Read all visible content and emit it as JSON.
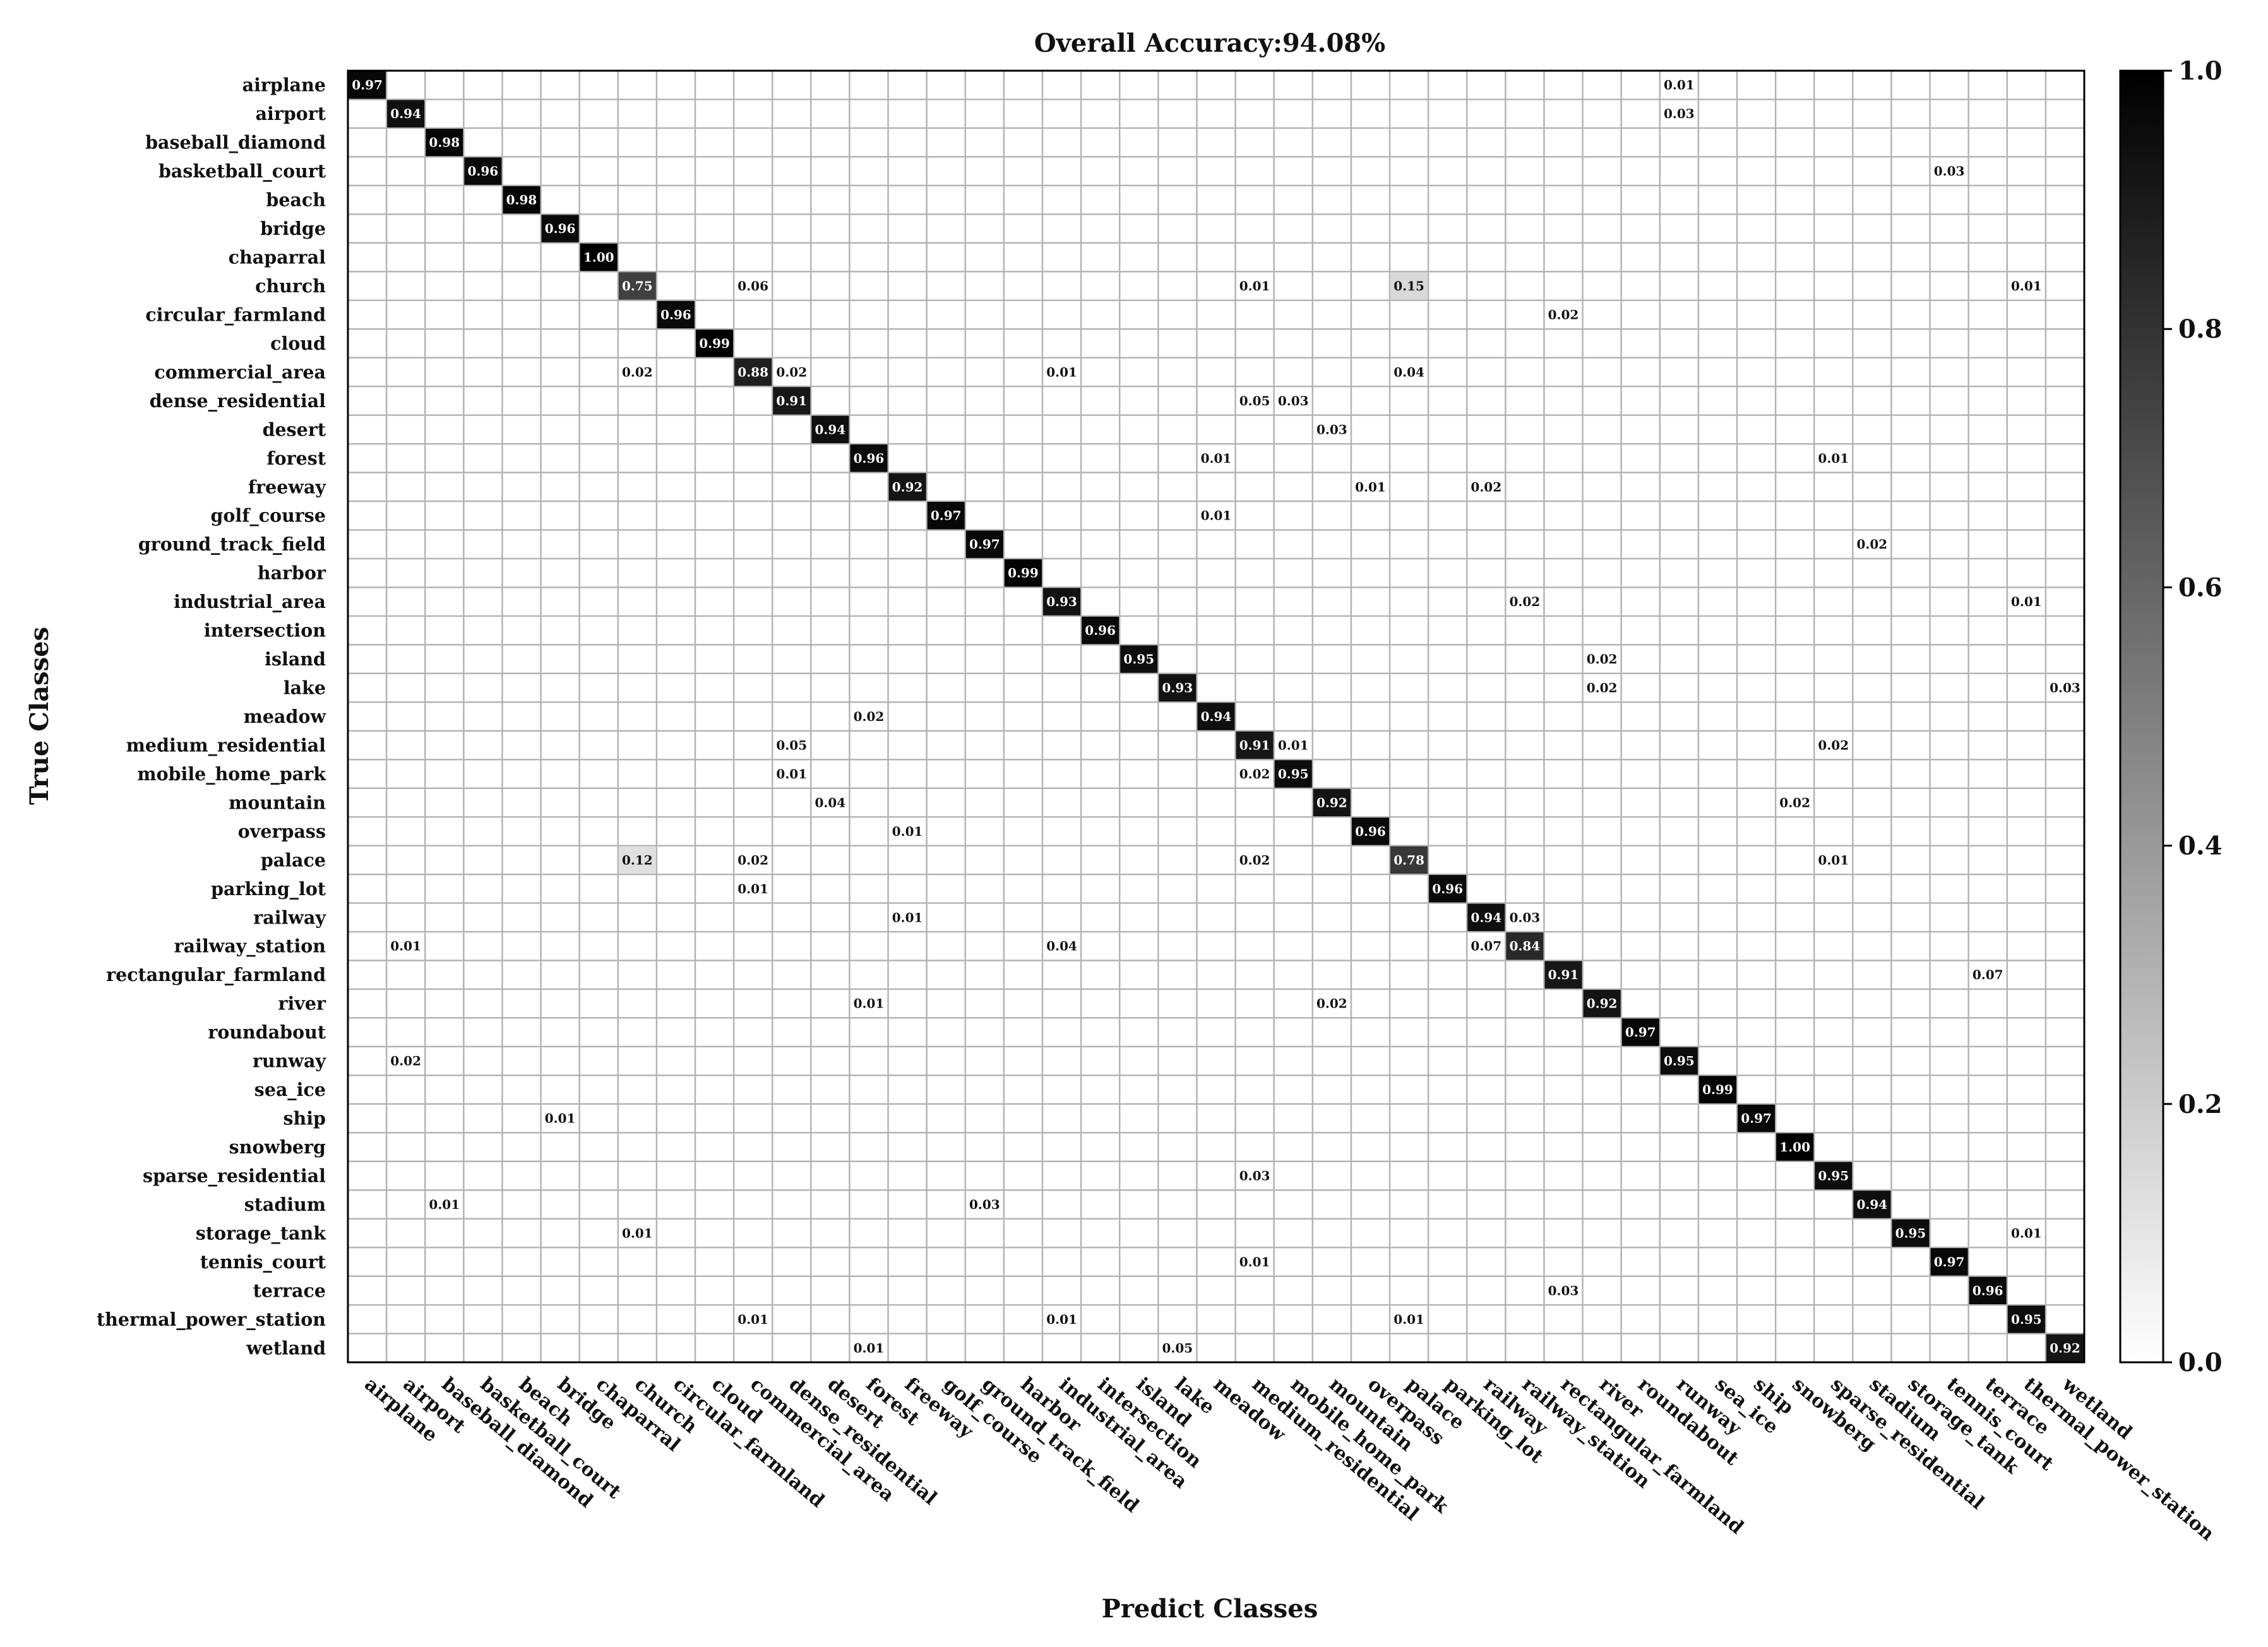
{
  "chart_data": {
    "type": "heatmap",
    "title": "Overall Accuracy:94.08%",
    "xlabel": "Predict Classes",
    "ylabel": "True Classes",
    "classes": [
      "airplane",
      "airport",
      "baseball_diamond",
      "basketball_court",
      "beach",
      "bridge",
      "chaparral",
      "church",
      "circular_farmland",
      "cloud",
      "commercial_area",
      "dense_residential",
      "desert",
      "forest",
      "freeway",
      "golf_course",
      "ground_track_field",
      "harbor",
      "industrial_area",
      "intersection",
      "island",
      "lake",
      "meadow",
      "medium_residential",
      "mobile_home_park",
      "mountain",
      "overpass",
      "palace",
      "parking_lot",
      "railway",
      "railway_station",
      "rectangular_farmland",
      "river",
      "roundabout",
      "runway",
      "sea_ice",
      "ship",
      "snowberg",
      "sparse_residential",
      "stadium",
      "storage_tank",
      "tennis_court",
      "terrace",
      "thermal_power_station",
      "wetland"
    ],
    "cells": [
      {
        "row": 0,
        "col": 0,
        "value": 0.97,
        "label": "0.97"
      },
      {
        "row": 0,
        "col": 34,
        "value": 0.01,
        "label": "0.01"
      },
      {
        "row": 1,
        "col": 1,
        "value": 0.94,
        "label": "0.94"
      },
      {
        "row": 1,
        "col": 34,
        "value": 0.03,
        "label": "0.03"
      },
      {
        "row": 2,
        "col": 2,
        "value": 0.98,
        "label": "0.98"
      },
      {
        "row": 3,
        "col": 3,
        "value": 0.96,
        "label": "0.96"
      },
      {
        "row": 3,
        "col": 41,
        "value": 0.03,
        "label": "0.03"
      },
      {
        "row": 4,
        "col": 4,
        "value": 0.98,
        "label": "0.98"
      },
      {
        "row": 5,
        "col": 5,
        "value": 0.96,
        "label": "0.96"
      },
      {
        "row": 6,
        "col": 6,
        "value": 1.0,
        "label": "1.00"
      },
      {
        "row": 7,
        "col": 7,
        "value": 0.75,
        "label": "0.75"
      },
      {
        "row": 7,
        "col": 10,
        "value": 0.06,
        "label": "0.06"
      },
      {
        "row": 7,
        "col": 23,
        "value": 0.01,
        "label": "0.01"
      },
      {
        "row": 7,
        "col": 27,
        "value": 0.15,
        "label": "0.15"
      },
      {
        "row": 7,
        "col": 43,
        "value": 0.01,
        "label": "0.01"
      },
      {
        "row": 8,
        "col": 8,
        "value": 0.96,
        "label": "0.96"
      },
      {
        "row": 8,
        "col": 31,
        "value": 0.02,
        "label": "0.02"
      },
      {
        "row": 9,
        "col": 9,
        "value": 0.99,
        "label": "0.99"
      },
      {
        "row": 10,
        "col": 7,
        "value": 0.02,
        "label": "0.02"
      },
      {
        "row": 10,
        "col": 10,
        "value": 0.88,
        "label": "0.88"
      },
      {
        "row": 10,
        "col": 11,
        "value": 0.02,
        "label": "0.02"
      },
      {
        "row": 10,
        "col": 18,
        "value": 0.01,
        "label": "0.01"
      },
      {
        "row": 10,
        "col": 27,
        "value": 0.04,
        "label": "0.04"
      },
      {
        "row": 11,
        "col": 11,
        "value": 0.91,
        "label": "0.91"
      },
      {
        "row": 11,
        "col": 23,
        "value": 0.05,
        "label": "0.05"
      },
      {
        "row": 11,
        "col": 24,
        "value": 0.03,
        "label": "0.03"
      },
      {
        "row": 12,
        "col": 12,
        "value": 0.94,
        "label": "0.94"
      },
      {
        "row": 12,
        "col": 25,
        "value": 0.03,
        "label": "0.03"
      },
      {
        "row": 13,
        "col": 13,
        "value": 0.96,
        "label": "0.96"
      },
      {
        "row": 13,
        "col": 22,
        "value": 0.01,
        "label": "0.01"
      },
      {
        "row": 13,
        "col": 38,
        "value": 0.01,
        "label": "0.01"
      },
      {
        "row": 14,
        "col": 14,
        "value": 0.92,
        "label": "0.92"
      },
      {
        "row": 14,
        "col": 26,
        "value": 0.01,
        "label": "0.01"
      },
      {
        "row": 14,
        "col": 29,
        "value": 0.02,
        "label": "0.02"
      },
      {
        "row": 15,
        "col": 15,
        "value": 0.97,
        "label": "0.97"
      },
      {
        "row": 15,
        "col": 22,
        "value": 0.01,
        "label": "0.01"
      },
      {
        "row": 16,
        "col": 16,
        "value": 0.97,
        "label": "0.97"
      },
      {
        "row": 16,
        "col": 39,
        "value": 0.02,
        "label": "0.02"
      },
      {
        "row": 17,
        "col": 17,
        "value": 0.99,
        "label": "0.99"
      },
      {
        "row": 18,
        "col": 18,
        "value": 0.93,
        "label": "0.93"
      },
      {
        "row": 18,
        "col": 30,
        "value": 0.02,
        "label": "0.02"
      },
      {
        "row": 18,
        "col": 43,
        "value": 0.01,
        "label": "0.01"
      },
      {
        "row": 19,
        "col": 19,
        "value": 0.96,
        "label": "0.96"
      },
      {
        "row": 20,
        "col": 20,
        "value": 0.95,
        "label": "0.95"
      },
      {
        "row": 20,
        "col": 32,
        "value": 0.02,
        "label": "0.02"
      },
      {
        "row": 21,
        "col": 21,
        "value": 0.93,
        "label": "0.93"
      },
      {
        "row": 21,
        "col": 32,
        "value": 0.02,
        "label": "0.02"
      },
      {
        "row": 21,
        "col": 44,
        "value": 0.03,
        "label": "0.03"
      },
      {
        "row": 22,
        "col": 13,
        "value": 0.02,
        "label": "0.02"
      },
      {
        "row": 22,
        "col": 22,
        "value": 0.94,
        "label": "0.94"
      },
      {
        "row": 23,
        "col": 11,
        "value": 0.05,
        "label": "0.05"
      },
      {
        "row": 23,
        "col": 23,
        "value": 0.91,
        "label": "0.91"
      },
      {
        "row": 23,
        "col": 24,
        "value": 0.01,
        "label": "0.01"
      },
      {
        "row": 23,
        "col": 38,
        "value": 0.02,
        "label": "0.02"
      },
      {
        "row": 24,
        "col": 11,
        "value": 0.01,
        "label": "0.01"
      },
      {
        "row": 24,
        "col": 23,
        "value": 0.02,
        "label": "0.02"
      },
      {
        "row": 24,
        "col": 24,
        "value": 0.95,
        "label": "0.95"
      },
      {
        "row": 25,
        "col": 12,
        "value": 0.04,
        "label": "0.04"
      },
      {
        "row": 25,
        "col": 25,
        "value": 0.92,
        "label": "0.92"
      },
      {
        "row": 25,
        "col": 37,
        "value": 0.02,
        "label": "0.02"
      },
      {
        "row": 26,
        "col": 14,
        "value": 0.01,
        "label": "0.01"
      },
      {
        "row": 26,
        "col": 26,
        "value": 0.96,
        "label": "0.96"
      },
      {
        "row": 27,
        "col": 7,
        "value": 0.12,
        "label": "0.12"
      },
      {
        "row": 27,
        "col": 10,
        "value": 0.02,
        "label": "0.02"
      },
      {
        "row": 27,
        "col": 23,
        "value": 0.02,
        "label": "0.02"
      },
      {
        "row": 27,
        "col": 27,
        "value": 0.78,
        "label": "0.78"
      },
      {
        "row": 27,
        "col": 38,
        "value": 0.01,
        "label": "0.01"
      },
      {
        "row": 28,
        "col": 10,
        "value": 0.01,
        "label": "0.01"
      },
      {
        "row": 28,
        "col": 28,
        "value": 0.96,
        "label": "0.96"
      },
      {
        "row": 29,
        "col": 14,
        "value": 0.01,
        "label": "0.01"
      },
      {
        "row": 29,
        "col": 29,
        "value": 0.94,
        "label": "0.94"
      },
      {
        "row": 29,
        "col": 30,
        "value": 0.03,
        "label": "0.03"
      },
      {
        "row": 30,
        "col": 1,
        "value": 0.01,
        "label": "0.01"
      },
      {
        "row": 30,
        "col": 18,
        "value": 0.04,
        "label": "0.04"
      },
      {
        "row": 30,
        "col": 29,
        "value": 0.07,
        "label": "0.07"
      },
      {
        "row": 30,
        "col": 30,
        "value": 0.84,
        "label": "0.84"
      },
      {
        "row": 31,
        "col": 31,
        "value": 0.91,
        "label": "0.91"
      },
      {
        "row": 31,
        "col": 42,
        "value": 0.07,
        "label": "0.07"
      },
      {
        "row": 32,
        "col": 13,
        "value": 0.01,
        "label": "0.01"
      },
      {
        "row": 32,
        "col": 25,
        "value": 0.02,
        "label": "0.02"
      },
      {
        "row": 32,
        "col": 32,
        "value": 0.92,
        "label": "0.92"
      },
      {
        "row": 33,
        "col": 33,
        "value": 0.97,
        "label": "0.97"
      },
      {
        "row": 34,
        "col": 1,
        "value": 0.02,
        "label": "0.02"
      },
      {
        "row": 34,
        "col": 34,
        "value": 0.95,
        "label": "0.95"
      },
      {
        "row": 35,
        "col": 35,
        "value": 0.99,
        "label": "0.99"
      },
      {
        "row": 36,
        "col": 5,
        "value": 0.01,
        "label": "0.01"
      },
      {
        "row": 36,
        "col": 36,
        "value": 0.97,
        "label": "0.97"
      },
      {
        "row": 37,
        "col": 37,
        "value": 1.0,
        "label": "1.00"
      },
      {
        "row": 38,
        "col": 23,
        "value": 0.03,
        "label": "0.03"
      },
      {
        "row": 38,
        "col": 38,
        "value": 0.95,
        "label": "0.95"
      },
      {
        "row": 39,
        "col": 2,
        "value": 0.01,
        "label": "0.01"
      },
      {
        "row": 39,
        "col": 16,
        "value": 0.03,
        "label": "0.03"
      },
      {
        "row": 39,
        "col": 39,
        "value": 0.94,
        "label": "0.94"
      },
      {
        "row": 40,
        "col": 7,
        "value": 0.01,
        "label": "0.01"
      },
      {
        "row": 40,
        "col": 40,
        "value": 0.95,
        "label": "0.95"
      },
      {
        "row": 40,
        "col": 43,
        "value": 0.01,
        "label": "0.01"
      },
      {
        "row": 41,
        "col": 23,
        "value": 0.01,
        "label": "0.01"
      },
      {
        "row": 41,
        "col": 41,
        "value": 0.97,
        "label": "0.97"
      },
      {
        "row": 42,
        "col": 31,
        "value": 0.03,
        "label": "0.03"
      },
      {
        "row": 42,
        "col": 42,
        "value": 0.96,
        "label": "0.96"
      },
      {
        "row": 43,
        "col": 10,
        "value": 0.01,
        "label": "0.01"
      },
      {
        "row": 43,
        "col": 18,
        "value": 0.01,
        "label": "0.01"
      },
      {
        "row": 43,
        "col": 27,
        "value": 0.01,
        "label": "0.01"
      },
      {
        "row": 43,
        "col": 43,
        "value": 0.95,
        "label": "0.95"
      },
      {
        "row": 44,
        "col": 13,
        "value": 0.01,
        "label": "0.01"
      },
      {
        "row": 44,
        "col": 21,
        "value": 0.05,
        "label": "0.05"
      },
      {
        "row": 44,
        "col": 44,
        "value": 0.92,
        "label": "0.92"
      }
    ],
    "colorbar": {
      "range": [
        0.0,
        1.0
      ],
      "ticks": [
        "0.0",
        "0.2",
        "0.4",
        "0.6",
        "0.8",
        "1.0"
      ],
      "colormap": "greys (white = 0.0, black = 1.0)"
    },
    "grid": true,
    "colors": {
      "low": "#ffffff",
      "high": "#000000",
      "grid": "#b4b4b4",
      "border": "#000000"
    }
  }
}
